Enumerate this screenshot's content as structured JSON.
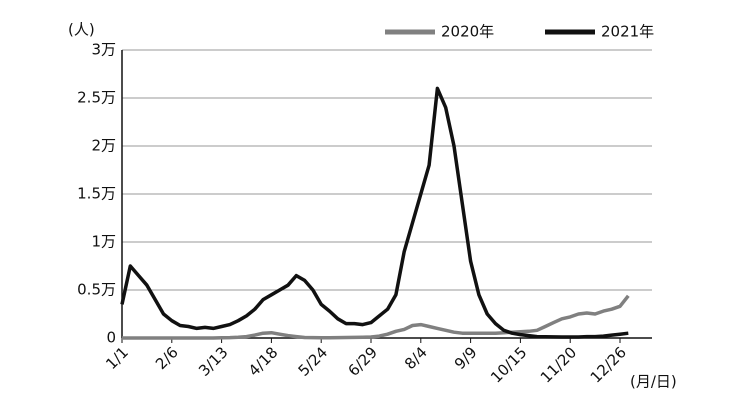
{
  "chart_data": {
    "type": "line",
    "y_label": "(人)",
    "x_label": "(月/日)",
    "categories": [
      "1/1",
      null,
      null,
      null,
      null,
      null,
      "2/6",
      null,
      null,
      null,
      null,
      null,
      "3/13",
      null,
      null,
      null,
      null,
      null,
      "4/18",
      null,
      null,
      null,
      null,
      null,
      "5/24",
      null,
      null,
      null,
      null,
      null,
      "6/29",
      null,
      null,
      null,
      null,
      null,
      "8/4",
      null,
      null,
      null,
      null,
      null,
      "9/9",
      null,
      null,
      null,
      null,
      null,
      "10/15",
      null,
      null,
      null,
      null,
      null,
      "11/20",
      null,
      null,
      null,
      null,
      null,
      "12/26",
      null
    ],
    "series": [
      {
        "name": "2020年",
        "color": "#808080",
        "values": [
          0,
          0,
          0,
          0,
          0,
          0,
          0,
          0,
          0,
          0,
          0,
          0,
          20,
          40,
          80,
          150,
          300,
          500,
          550,
          400,
          250,
          150,
          50,
          40,
          30,
          30,
          40,
          50,
          60,
          80,
          100,
          200,
          400,
          700,
          900,
          1300,
          1400,
          1200,
          1000,
          800,
          600,
          500,
          500,
          500,
          500,
          500,
          550,
          600,
          650,
          700,
          800,
          1200,
          1600,
          2000,
          2200,
          2500,
          2600,
          2500,
          2800,
          3000,
          3300,
          4400
        ]
      },
      {
        "name": "2021年",
        "color": "#111111",
        "values": [
          3500,
          7500,
          6500,
          5500,
          4000,
          2500,
          1800,
          1300,
          1200,
          1000,
          1100,
          1000,
          1200,
          1400,
          1800,
          2300,
          3000,
          4000,
          4500,
          5000,
          5500,
          6500,
          6000,
          5000,
          3500,
          2800,
          2000,
          1500,
          1500,
          1400,
          1600,
          2300,
          3000,
          4500,
          9000,
          12000,
          15000,
          18000,
          26000,
          24000,
          20000,
          14000,
          8000,
          4500,
          2500,
          1500,
          800,
          500,
          350,
          250,
          150,
          120,
          110,
          100,
          100,
          100,
          150,
          150,
          200,
          300,
          400,
          500
        ]
      }
    ],
    "ylim": [
      0,
      30000
    ],
    "yticks": [
      0,
      {
        "value": 5000,
        "label": "0.5万"
      },
      {
        "value": 10000,
        "label": "1万"
      },
      {
        "value": 15000,
        "label": "1.5万"
      },
      {
        "value": 20000,
        "label": "2万"
      },
      {
        "value": 25000,
        "label": "2.5万"
      },
      {
        "value": 30000,
        "label": "3万"
      }
    ],
    "grid": true,
    "legend": "top-right"
  }
}
